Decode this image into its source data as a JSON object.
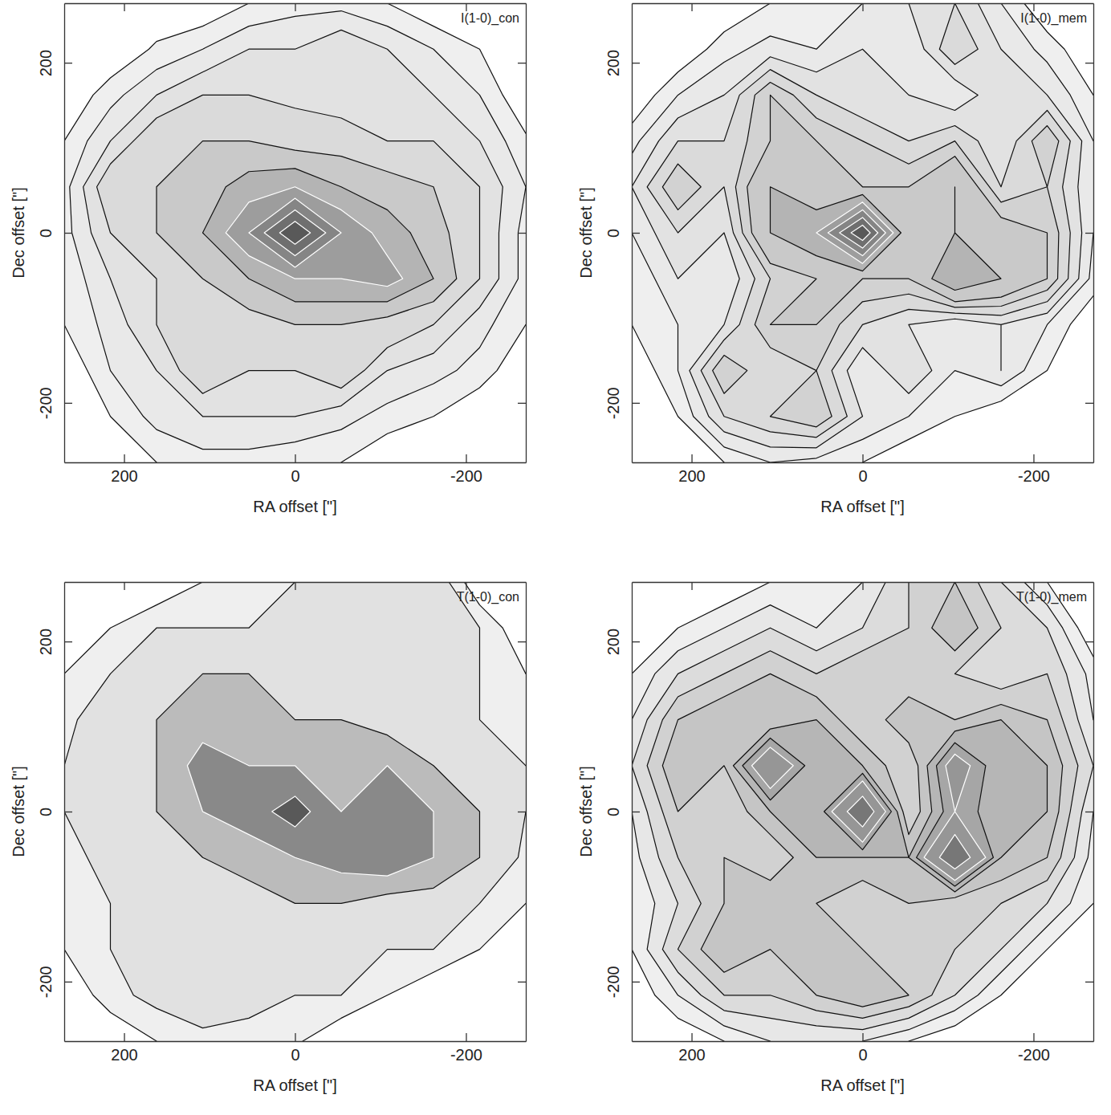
{
  "chart_data": [
    {
      "type": "contour",
      "title": "I(1-0)_con",
      "x_label": "RA offset [\"]",
      "y_label": "Dec offset [\"]",
      "xlim": [
        270,
        -270
      ],
      "ylim": [
        -270,
        270
      ],
      "xticks": [
        200,
        0,
        -200
      ],
      "yticks": [
        -200,
        0,
        200
      ],
      "x": [
        270,
        216,
        162,
        108,
        54,
        0,
        -54,
        -108,
        -162,
        -216,
        -270
      ],
      "y": [
        270,
        216,
        162,
        108,
        54,
        0,
        -54,
        -108,
        -162,
        -216,
        -270
      ],
      "z": [
        [
          0,
          0,
          0,
          0,
          0.5,
          0.8,
          0.8,
          0.5,
          0,
          0,
          0
        ],
        [
          0,
          0,
          0.6,
          1,
          1.5,
          1.5,
          2,
          1.5,
          1,
          0.5,
          0
        ],
        [
          0,
          0.8,
          1.5,
          2,
          2,
          1.8,
          1.5,
          1.5,
          1.5,
          1,
          0
        ],
        [
          0.5,
          1.5,
          2.5,
          3,
          3,
          2.5,
          2.5,
          2,
          2,
          1.5,
          0.6
        ],
        [
          0.8,
          2.5,
          3,
          3.5,
          4.5,
          5,
          4,
          3.5,
          3,
          2,
          1
        ],
        [
          0.8,
          2,
          3,
          4,
          6,
          9,
          6,
          4.5,
          3.5,
          2,
          0.8
        ],
        [
          0.6,
          1.5,
          2,
          3,
          4,
          5,
          5,
          5.5,
          4,
          2,
          0.8
        ],
        [
          0.5,
          1.2,
          2,
          2,
          2.5,
          3,
          3,
          2.5,
          2,
          1.2,
          0.5
        ],
        [
          0,
          1,
          1.5,
          2.5,
          2,
          2,
          2.5,
          1.5,
          1.2,
          0.8,
          0
        ],
        [
          0,
          0.5,
          1.2,
          1.5,
          1.5,
          1.5,
          1.2,
          0.8,
          0.5,
          0,
          0
        ],
        [
          0,
          0,
          0.5,
          0.8,
          0.8,
          0.6,
          0.5,
          0,
          0,
          0,
          0
        ]
      ],
      "levels": [
        0.5,
        1,
        1.5,
        2,
        3,
        4,
        5,
        6,
        7,
        8
      ]
    },
    {
      "type": "contour",
      "title": "I(1-0)_mem",
      "x_label": "RA offset [\"]",
      "y_label": "Dec offset [\"]",
      "xlim": [
        270,
        -270
      ],
      "ylim": [
        -270,
        270
      ],
      "xticks": [
        200,
        0,
        -200
      ],
      "yticks": [
        -200,
        0,
        200
      ],
      "x": [
        270,
        216,
        162,
        108,
        54,
        0,
        -54,
        -108,
        -162,
        -216,
        -270
      ],
      "y": [
        270,
        216,
        162,
        108,
        54,
        0,
        -54,
        -108,
        -162,
        -216,
        -270
      ],
      "z": [
        [
          0,
          0,
          0,
          0.5,
          0.8,
          1,
          1.5,
          2,
          1,
          0,
          0
        ],
        [
          0,
          0,
          0.8,
          1.2,
          1,
          1.5,
          1,
          2.5,
          1.5,
          0.8,
          0
        ],
        [
          0,
          1,
          1.5,
          3,
          2,
          1.5,
          1.5,
          1,
          2,
          1.5,
          0.5
        ],
        [
          0.8,
          2,
          2,
          3,
          3,
          2.5,
          2,
          2.5,
          1.5,
          3,
          1
        ],
        [
          1.5,
          3,
          2,
          4,
          3,
          3,
          3,
          4,
          2,
          2.5,
          1
        ],
        [
          1,
          2,
          1.5,
          4,
          5,
          9,
          3,
          4,
          3.5,
          3,
          1
        ],
        [
          0.5,
          1.5,
          1,
          2.5,
          3,
          3,
          3,
          5,
          4,
          3,
          0.8
        ],
        [
          0.5,
          1,
          1.5,
          3,
          3,
          2,
          1.5,
          1,
          1.5,
          1,
          0
        ],
        [
          0,
          1,
          3,
          2,
          2.5,
          1,
          2,
          1,
          1.5,
          0.5,
          0
        ],
        [
          0,
          0.5,
          2,
          2.5,
          3,
          1.5,
          1,
          0.5,
          0,
          0,
          0
        ],
        [
          0,
          0,
          0.5,
          1,
          0.8,
          0.5,
          0,
          0,
          0,
          0,
          0
        ]
      ],
      "levels": [
        0.5,
        1,
        1.5,
        2,
        2.5,
        3,
        4,
        5,
        6,
        7,
        8
      ]
    },
    {
      "type": "contour",
      "title": "T(1-0)_con",
      "x_label": "RA offset [\"]",
      "y_label": "Dec offset [\"]",
      "xlim": [
        270,
        -270
      ],
      "ylim": [
        -270,
        270
      ],
      "xticks": [
        200,
        0,
        -200
      ],
      "yticks": [
        -200,
        0,
        200
      ],
      "x": [
        270,
        216,
        162,
        108,
        54,
        0,
        -54,
        -108,
        -162,
        -216,
        -270
      ],
      "y": [
        270,
        216,
        162,
        108,
        54,
        0,
        -54,
        -108,
        -162,
        -216,
        -270
      ],
      "z": [
        [
          0,
          0,
          0,
          0.5,
          0.8,
          1,
          1,
          1.5,
          1.5,
          0,
          0
        ],
        [
          0,
          0.5,
          1,
          1,
          1,
          1,
          1.2,
          2,
          1.5,
          1,
          0
        ],
        [
          0.5,
          1,
          1.5,
          2,
          2,
          1.5,
          1.5,
          1.5,
          1.2,
          1,
          0.5
        ],
        [
          0.8,
          1.5,
          2,
          2.5,
          2,
          2,
          2,
          1.5,
          1.5,
          1,
          0.8
        ],
        [
          1,
          1.5,
          2,
          3.5,
          3,
          3,
          2.5,
          3,
          2,
          1.5,
          1
        ],
        [
          1,
          1.5,
          2,
          3,
          3.5,
          4.5,
          3,
          3,
          3,
          2,
          1
        ],
        [
          0.8,
          1.2,
          1.5,
          2,
          2.5,
          3,
          3.5,
          4,
          3,
          2,
          0.8
        ],
        [
          0.5,
          1,
          1.5,
          1.5,
          1.5,
          2,
          2,
          1.5,
          1.5,
          1,
          0.5
        ],
        [
          0.5,
          1,
          2,
          1.5,
          1.2,
          1.5,
          1.2,
          1,
          1,
          0.5,
          0
        ],
        [
          0,
          0.8,
          1.2,
          1.5,
          1.2,
          1,
          1,
          0.5,
          0,
          0,
          0
        ],
        [
          0,
          0,
          0.5,
          0.8,
          0.8,
          0.6,
          0,
          0,
          0,
          0,
          0
        ]
      ],
      "levels": [
        0.5,
        1,
        2,
        3,
        4
      ]
    },
    {
      "type": "contour",
      "title": "T(1-0)_mem",
      "x_label": "RA offset [\"]",
      "y_label": "Dec offset [\"]",
      "xlim": [
        270,
        -270
      ],
      "ylim": [
        -270,
        270
      ],
      "xticks": [
        200,
        0,
        -200
      ],
      "yticks": [
        -200,
        0,
        200
      ],
      "x": [
        270,
        216,
        162,
        108,
        54,
        0,
        -54,
        -108,
        -162,
        -216,
        -270
      ],
      "y": [
        270,
        216,
        162,
        108,
        54,
        0,
        -54,
        -108,
        -162,
        -216,
        -270
      ],
      "z": [
        [
          0,
          0,
          0,
          0.5,
          0.8,
          1,
          2,
          2.5,
          1.5,
          0.5,
          0
        ],
        [
          0,
          0.5,
          1,
          1.5,
          1,
          1.5,
          2,
          3,
          2,
          1.5,
          0
        ],
        [
          0.5,
          1.5,
          2,
          2.5,
          2,
          2.5,
          2,
          2,
          1.5,
          2,
          0.8
        ],
        [
          1,
          2.5,
          3,
          2.5,
          3,
          2,
          3,
          2.5,
          3,
          2.5,
          1
        ],
        [
          1.5,
          3,
          2.5,
          5,
          3,
          3,
          2,
          4.5,
          3,
          3,
          1.5
        ],
        [
          1,
          2.5,
          2,
          3,
          3,
          6,
          2,
          4,
          3,
          3,
          1
        ],
        [
          0.8,
          2,
          2.5,
          2,
          3,
          3,
          3,
          6,
          3,
          2.5,
          0.8
        ],
        [
          0.5,
          1.5,
          2.5,
          3,
          2.5,
          2,
          2.5,
          2,
          2,
          1.5,
          0.5
        ],
        [
          0.5,
          2,
          3,
          2.5,
          2.5,
          2.5,
          2,
          2,
          1.5,
          0.5,
          0
        ],
        [
          0,
          1,
          2,
          2,
          2.5,
          3,
          2.5,
          1.5,
          0.5,
          0,
          0
        ],
        [
          0,
          0,
          0.5,
          1,
          1,
          1,
          0.5,
          0,
          0,
          0,
          0
        ]
      ],
      "levels": [
        0.5,
        1,
        1.5,
        2,
        2.5,
        3,
        3.5,
        4,
        5,
        6
      ]
    }
  ]
}
